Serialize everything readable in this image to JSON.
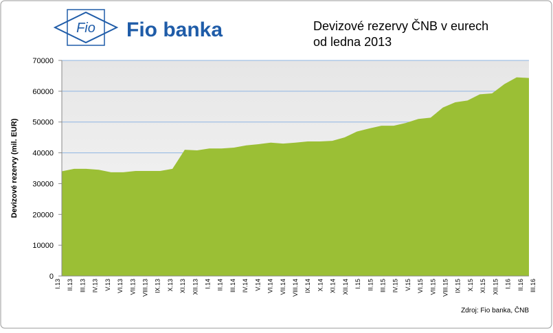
{
  "logo": {
    "emblem": "Fio",
    "name": "Fio banka"
  },
  "chart_data": {
    "type": "area",
    "title_lines": [
      "Devizové  rezervy  ČNB  v eurech",
      "od ledna  2013"
    ],
    "y_label": "Devizové  rezervy  (mil. EUR)",
    "source": "Zdroj:  Fio  banka,  ČNB",
    "categories": [
      "I.13",
      "II.13",
      "III.13",
      "IV.13",
      "V.13",
      "VI.13",
      "VII.13",
      "VIII.13",
      "IX.13",
      "X.13",
      "XI.13",
      "XII.13",
      "I.14",
      "II.14",
      "III.14",
      "IV.14",
      "V.14",
      "VI.14",
      "VII.14",
      "VIII.14",
      "IX.14",
      "X.14",
      "XI.14",
      "XII.14",
      "I.15",
      "II.15",
      "III.15",
      "IV.15",
      "V.15",
      "VI.15",
      "VII.15",
      "VIII.15",
      "IX.15",
      "X.15",
      "XI.15",
      "XII.15",
      "I.16",
      "II.16",
      "III.16"
    ],
    "values": [
      34000,
      34800,
      34800,
      34500,
      33700,
      33700,
      34100,
      34100,
      34100,
      34800,
      41000,
      40800,
      41400,
      41400,
      41700,
      42400,
      42800,
      43300,
      43000,
      43300,
      43700,
      43700,
      43900,
      45000,
      46900,
      47900,
      48800,
      48800,
      49700,
      51000,
      51400,
      54700,
      56400,
      57000,
      59000,
      59300,
      62300,
      64500,
      64300
    ],
    "color": "#9bbf35",
    "ylim": [
      0,
      70000
    ],
    "yticks": [
      0,
      10000,
      20000,
      30000,
      40000,
      50000,
      60000,
      70000
    ],
    "grid": true
  }
}
